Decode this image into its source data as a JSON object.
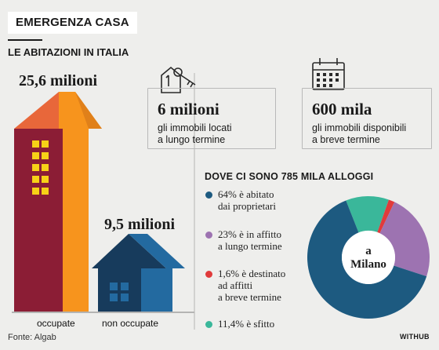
{
  "header": {
    "badge": "EMERGENZA CASA",
    "subtitle": "LE ABITAZIONI IN ITALIA"
  },
  "occupied": {
    "value": "25,6 milioni",
    "label": "occupate"
  },
  "unoccupied": {
    "value": "9,5 milioni",
    "label": "non occupate"
  },
  "card_left": {
    "icon": "house-key-icon",
    "value": "6 milioni",
    "text_line1": "gli immobili locati",
    "text_line2": "a lungo termine"
  },
  "card_right": {
    "icon": "calendar-icon",
    "value": "600 mila",
    "text_line1": "gli immobili disponibili",
    "text_line2": "a breve termine"
  },
  "milano": {
    "heading": "DOVE CI SONO 785 MILA ALLOGGI",
    "center_line1": "a",
    "center_line2": "Milano",
    "legend": [
      {
        "line1": "64% è abitato",
        "line2": "dai proprietari",
        "line3": ""
      },
      {
        "line1": "23% è in affitto",
        "line2": "a lungo termine",
        "line3": ""
      },
      {
        "line1": "1,6% è destinato",
        "line2": "ad affitti",
        "line3": "a breve termine"
      },
      {
        "line1": "11,4% è sfitto",
        "line2": "",
        "line3": ""
      }
    ]
  },
  "chart_data": {
    "type": "pie",
    "title": "DOVE CI SONO 785 MILA ALLOGGI",
    "categories": [
      "64% è abitato dai proprietari",
      "23% è in affitto a lungo termine",
      "1,6% è destinato ad affitti a breve termine",
      "11,4% è sfitto"
    ],
    "values": [
      64,
      23,
      1.6,
      11.4
    ],
    "colors": [
      "#1d5a80",
      "#9d73b1",
      "#e03b3b",
      "#3ab79a"
    ],
    "donut": true
  },
  "colors": {
    "occupied_front": "#f7941d",
    "occupied_side": "#8b1d35",
    "occupied_roof": "#e8673a",
    "unoccupied_front": "#236aa0",
    "unoccupied_side": "#173b5c",
    "window": "#f7d117"
  },
  "footer": {
    "source": "Fonte: Algab",
    "logo": "WITHUB"
  }
}
